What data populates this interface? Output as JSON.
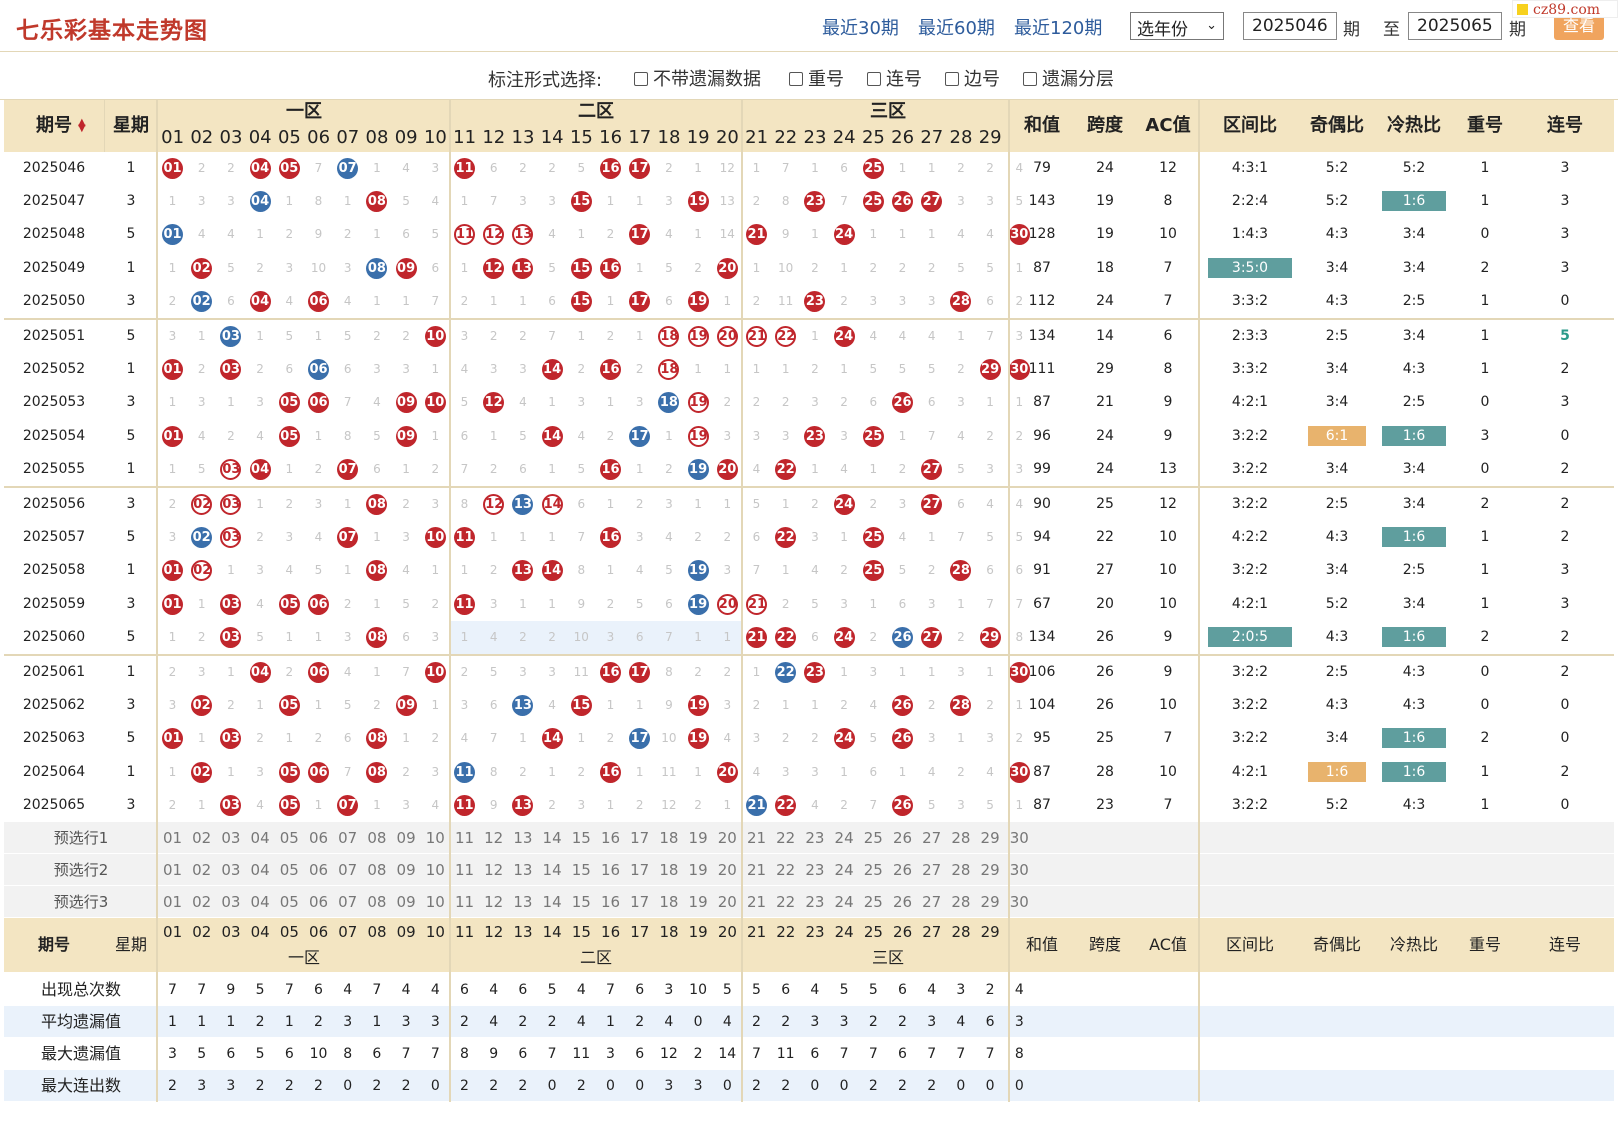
{
  "header": {
    "title": "七乐彩基本走势图",
    "range_links": [
      "最近30期",
      "最近60期",
      "最近120期"
    ],
    "year_select": "选年份",
    "from_period": "2025046",
    "to_period": "2025065",
    "period_label": "期",
    "to_label": "至",
    "query_button": "查看",
    "site": "cz89.com"
  },
  "options": {
    "label": "标注形式选择:",
    "items": [
      "不带遗漏数据",
      "重号",
      "连号",
      "边号",
      "遗漏分层"
    ]
  },
  "columns": {
    "period": "期号",
    "weekday": "星期",
    "zones": [
      "一区",
      "二区",
      "三区"
    ],
    "stats": [
      "和值",
      "跨度",
      "AC值",
      "区间比",
      "奇偶比",
      "冷热比",
      "重号",
      "连号"
    ]
  },
  "rows": [
    {
      "p": "2025046",
      "w": "1",
      "draw": "1,4,5,7,11,16,17,25",
      "blue": "7",
      "repeat": "",
      "miss": "0,2,2,0,0,7,0,1,4,3,0,6,2,2,5,0,0,2,1,12,1,7,1,6,0,1,1,2,2,4",
      "sum": "79",
      "span": "24",
      "ac": "12",
      "zone": "4:3:1",
      "oe": "5:2",
      "ch": "5:2",
      "rep": "1",
      "con": "3"
    },
    {
      "p": "2025047",
      "w": "3",
      "draw": "8,15,19,23,25,26,27",
      "blue": "4",
      "repeat": "",
      "miss": "1,3,3,0,1,8,1,0,5,4,1,7,3,3,0,1,1,3,0,13,2,8,0,7,0,0,0,3,3,5",
      "sum": "143",
      "span": "19",
      "ac": "8",
      "zone": "2:2:4",
      "oe": "5:2",
      "ch": "1:6",
      "chc": "g",
      "rep": "1",
      "con": "3"
    },
    {
      "p": "2025048",
      "w": "5",
      "draw": "17,21,24,30",
      "blue": "1",
      "repeat": "11,12,13",
      "miss": "0,4,4,1,2,9,2,1,6,5,0,0,0,4,1,2,0,4,1,14,0,9,1,0,1,1,1,4,4,0",
      "sum": "128",
      "span": "19",
      "ac": "10",
      "zone": "1:4:3",
      "oe": "4:3",
      "ch": "3:4",
      "rep": "0",
      "con": "3"
    },
    {
      "p": "2025049",
      "w": "1",
      "draw": "2,9,12,13,15,16,20",
      "blue": "8",
      "repeat": "",
      "miss": "1,0,5,2,3,10,3,0,0,6,1,0,0,5,0,0,1,5,2,0,1,10,2,1,2,2,2,5,5,1",
      "sum": "87",
      "span": "18",
      "ac": "7",
      "zone": "3:5:0",
      "zc": "g",
      "oe": "3:4",
      "ch": "3:4",
      "rep": "2",
      "con": "3"
    },
    {
      "p": "2025050",
      "w": "3",
      "draw": "4,6,15,17,19,23,28",
      "blue": "2",
      "repeat": "",
      "miss": "2,0,6,0,4,0,4,1,1,7,2,1,1,6,0,1,0,6,0,1,2,11,0,2,3,3,3,0,6,2",
      "sum": "112",
      "span": "24",
      "ac": "7",
      "zone": "3:3:2",
      "oe": "4:3",
      "ch": "2:5",
      "rep": "1",
      "con": "0"
    },
    {
      "p": "2025051",
      "w": "5",
      "draw": "10,24",
      "blue": "3",
      "repeat": "18,19,20,21,22",
      "miss": "3,1,0,1,5,1,5,2,2,0,3,2,2,7,1,2,1,0,0,0,0,0,1,0,4,4,4,1,7,3",
      "sum": "134",
      "span": "14",
      "ac": "6",
      "zone": "2:3:3",
      "oe": "2:5",
      "ch": "3:4",
      "rep": "1",
      "con": "5",
      "conc": "t"
    },
    {
      "p": "2025052",
      "w": "1",
      "draw": "1,3,14,16,29,30",
      "blue": "6",
      "repeat": "18",
      "miss": "0,2,0,2,6,0,6,3,3,1,4,3,3,0,2,0,2,0,1,1,1,1,2,1,5,5,5,2,0,0",
      "sum": "111",
      "span": "29",
      "ac": "8",
      "zone": "3:3:2",
      "oe": "3:4",
      "ch": "4:3",
      "rep": "1",
      "con": "2"
    },
    {
      "p": "2025053",
      "w": "3",
      "draw": "5,6,9,10,12,26",
      "blue": "18",
      "repeat": "19",
      "miss": "1,3,1,3,0,0,7,4,0,0,5,0,4,1,3,1,3,0,0,2,2,2,3,2,6,0,6,3,1,1",
      "sum": "87",
      "span": "21",
      "ac": "9",
      "zone": "4:2:1",
      "oe": "3:4",
      "ch": "2:5",
      "rep": "0",
      "con": "3"
    },
    {
      "p": "2025054",
      "w": "5",
      "draw": "1,5,9,14,23,25",
      "blue": "17",
      "repeat": "19",
      "miss": "0,4,2,4,0,1,8,5,0,1,6,1,5,0,4,2,0,1,0,3,3,3,0,3,0,1,7,4,2,2",
      "sum": "96",
      "span": "24",
      "ac": "9",
      "zone": "3:2:2",
      "oe": "6:1",
      "oec": "o",
      "ch": "1:6",
      "chc": "g",
      "rep": "3",
      "con": "0"
    },
    {
      "p": "2025055",
      "w": "1",
      "draw": "4,7,16,20,22,27",
      "blue": "19",
      "repeat": "3",
      "miss": "1,5,0,0,1,2,0,6,1,2,7,2,6,1,5,0,1,2,0,0,4,0,1,4,1,2,0,5,3,3",
      "sum": "99",
      "span": "24",
      "ac": "13",
      "zone": "3:2:2",
      "oe": "3:4",
      "ch": "3:4",
      "rep": "0",
      "con": "2"
    },
    {
      "p": "2025056",
      "w": "3",
      "draw": "8,24,27",
      "blue": "13",
      "repeat": "2,3,12,14",
      "miss": "2,0,0,1,2,3,1,0,2,3,8,0,0,0,6,1,2,3,1,1,5,1,2,0,2,3,0,6,4,4",
      "sum": "90",
      "span": "25",
      "ac": "12",
      "zone": "3:2:2",
      "oe": "2:5",
      "ch": "3:4",
      "rep": "2",
      "con": "2"
    },
    {
      "p": "2025057",
      "w": "5",
      "draw": "7,10,11,16,22,25",
      "blue": "2",
      "repeat": "3",
      "miss": "3,0,0,2,3,4,0,1,3,0,0,1,1,1,7,0,3,4,2,2,6,0,3,1,0,4,1,7,5,5",
      "sum": "94",
      "span": "22",
      "ac": "10",
      "zone": "4:2:2",
      "oe": "4:3",
      "ch": "1:6",
      "chc": "g",
      "rep": "1",
      "con": "2"
    },
    {
      "p": "2025058",
      "w": "1",
      "draw": "1,8,13,14,25,28",
      "blue": "19",
      "repeat": "2",
      "miss": "0,0,1,3,4,5,1,0,4,1,1,2,0,0,8,1,4,5,0,3,7,1,4,2,0,5,2,0,6,6",
      "sum": "91",
      "span": "27",
      "ac": "10",
      "zone": "3:2:2",
      "oe": "3:4",
      "ch": "2:5",
      "rep": "1",
      "con": "3"
    },
    {
      "p": "2025059",
      "w": "3",
      "draw": "1,3,5,6,11",
      "blue": "19",
      "repeat": "20,21",
      "miss": "0,1,0,4,0,0,2,1,5,2,0,3,1,1,9,2,5,6,0,0,0,2,5,3,1,6,3,1,7,7",
      "sum": "67",
      "span": "20",
      "ac": "10",
      "zone": "4:2:1",
      "oe": "5:2",
      "ch": "3:4",
      "rep": "1",
      "con": "3"
    },
    {
      "p": "2025060",
      "w": "5",
      "draw": "3,8,21,22,24,27,29",
      "blue": "26",
      "repeat": "",
      "miss": "1,2,0,5,1,1,3,0,6,3,1,4,2,2,10,3,6,7,1,1,0,0,6,0,2,0,0,2,0,8",
      "sum": "134",
      "span": "26",
      "ac": "9",
      "zone": "2:0:5",
      "zc": "g",
      "oe": "4:3",
      "ch": "1:6",
      "chc": "g",
      "rep": "2",
      "con": "2",
      "band": true
    },
    {
      "p": "2025061",
      "w": "1",
      "draw": "4,6,10,16,17,23,30",
      "blue": "22",
      "repeat": "",
      "miss": "2,3,1,0,2,0,4,1,7,0,2,5,3,3,11,0,0,8,2,2,1,0,0,1,3,1,1,3,1,0",
      "sum": "106",
      "span": "26",
      "ac": "9",
      "zone": "3:2:2",
      "oe": "2:5",
      "ch": "4:3",
      "rep": "0",
      "con": "2"
    },
    {
      "p": "2025062",
      "w": "3",
      "draw": "2,5,9,15,19,26,28",
      "blue": "13",
      "repeat": "",
      "miss": "3,0,2,1,0,1,5,2,0,1,3,6,0,4,0,1,1,9,0,3,2,1,1,2,4,0,2,0,2,1",
      "sum": "104",
      "span": "26",
      "ac": "10",
      "zone": "3:2:2",
      "oe": "4:3",
      "ch": "4:3",
      "rep": "0",
      "con": "0"
    },
    {
      "p": "2025063",
      "w": "5",
      "draw": "1,3,8,14,19,24,26",
      "blue": "17",
      "repeat": "",
      "miss": "0,1,0,2,1,2,6,0,1,2,4,7,1,0,1,2,0,10,0,4,3,2,2,0,5,0,3,1,3,2",
      "sum": "95",
      "span": "25",
      "ac": "7",
      "zone": "3:2:2",
      "oe": "3:4",
      "ch": "1:6",
      "chc": "g",
      "rep": "2",
      "con": "0"
    },
    {
      "p": "2025064",
      "w": "1",
      "draw": "2,5,6,8,16,20,30",
      "blue": "11",
      "repeat": "",
      "miss": "1,0,1,3,0,0,7,0,2,3,0,8,2,1,2,0,1,11,1,0,4,3,3,1,6,1,4,2,4,0",
      "sum": "87",
      "span": "28",
      "ac": "10",
      "zone": "4:2:1",
      "oe": "1:6",
      "oec": "o",
      "ch": "1:6",
      "chc": "g",
      "rep": "1",
      "con": "2"
    },
    {
      "p": "2025065",
      "w": "3",
      "draw": "3,5,7,11,13,22,26",
      "blue": "21",
      "repeat": "",
      "miss": "2,1,0,4,0,1,0,1,3,4,0,9,0,2,3,1,2,12,2,1,0,0,4,2,7,0,5,3,5,1",
      "sum": "87",
      "span": "23",
      "ac": "7",
      "zone": "3:2:2",
      "oe": "5:2",
      "ch": "4:3",
      "rep": "1",
      "con": "0"
    }
  ],
  "preselect_labels": [
    "预选行1",
    "预选行2",
    "预选行3"
  ],
  "footer_labels": {
    "period": "期号",
    "weekday": "星期"
  },
  "stat_rows": [
    {
      "label": "出现总次数",
      "values": [
        7,
        7,
        9,
        5,
        7,
        6,
        4,
        7,
        4,
        4,
        6,
        4,
        6,
        5,
        4,
        7,
        6,
        3,
        10,
        5,
        5,
        6,
        4,
        5,
        5,
        6,
        4,
        3,
        2,
        4
      ]
    },
    {
      "label": "平均遗漏值",
      "values": [
        1,
        1,
        1,
        2,
        1,
        2,
        3,
        1,
        3,
        3,
        2,
        4,
        2,
        2,
        4,
        1,
        2,
        4,
        0,
        4,
        2,
        2,
        3,
        3,
        2,
        2,
        3,
        4,
        6,
        3
      ]
    },
    {
      "label": "最大遗漏值",
      "values": [
        3,
        5,
        6,
        5,
        6,
        10,
        8,
        6,
        7,
        7,
        8,
        9,
        6,
        7,
        11,
        3,
        6,
        12,
        2,
        14,
        7,
        11,
        6,
        7,
        7,
        6,
        7,
        7,
        7,
        8
      ]
    },
    {
      "label": "最大连出数",
      "values": [
        2,
        3,
        3,
        2,
        2,
        2,
        0,
        2,
        2,
        0,
        2,
        2,
        2,
        0,
        2,
        0,
        0,
        3,
        3,
        0,
        2,
        2,
        0,
        0,
        2,
        2,
        2,
        0,
        0,
        0
      ]
    }
  ],
  "colors": {
    "red": "#c0262c",
    "blue": "#3a6fab",
    "header_bg": "#f3e5c2",
    "highlight_green": "#5f9e9e",
    "highlight_orange": "#e8b36d"
  }
}
